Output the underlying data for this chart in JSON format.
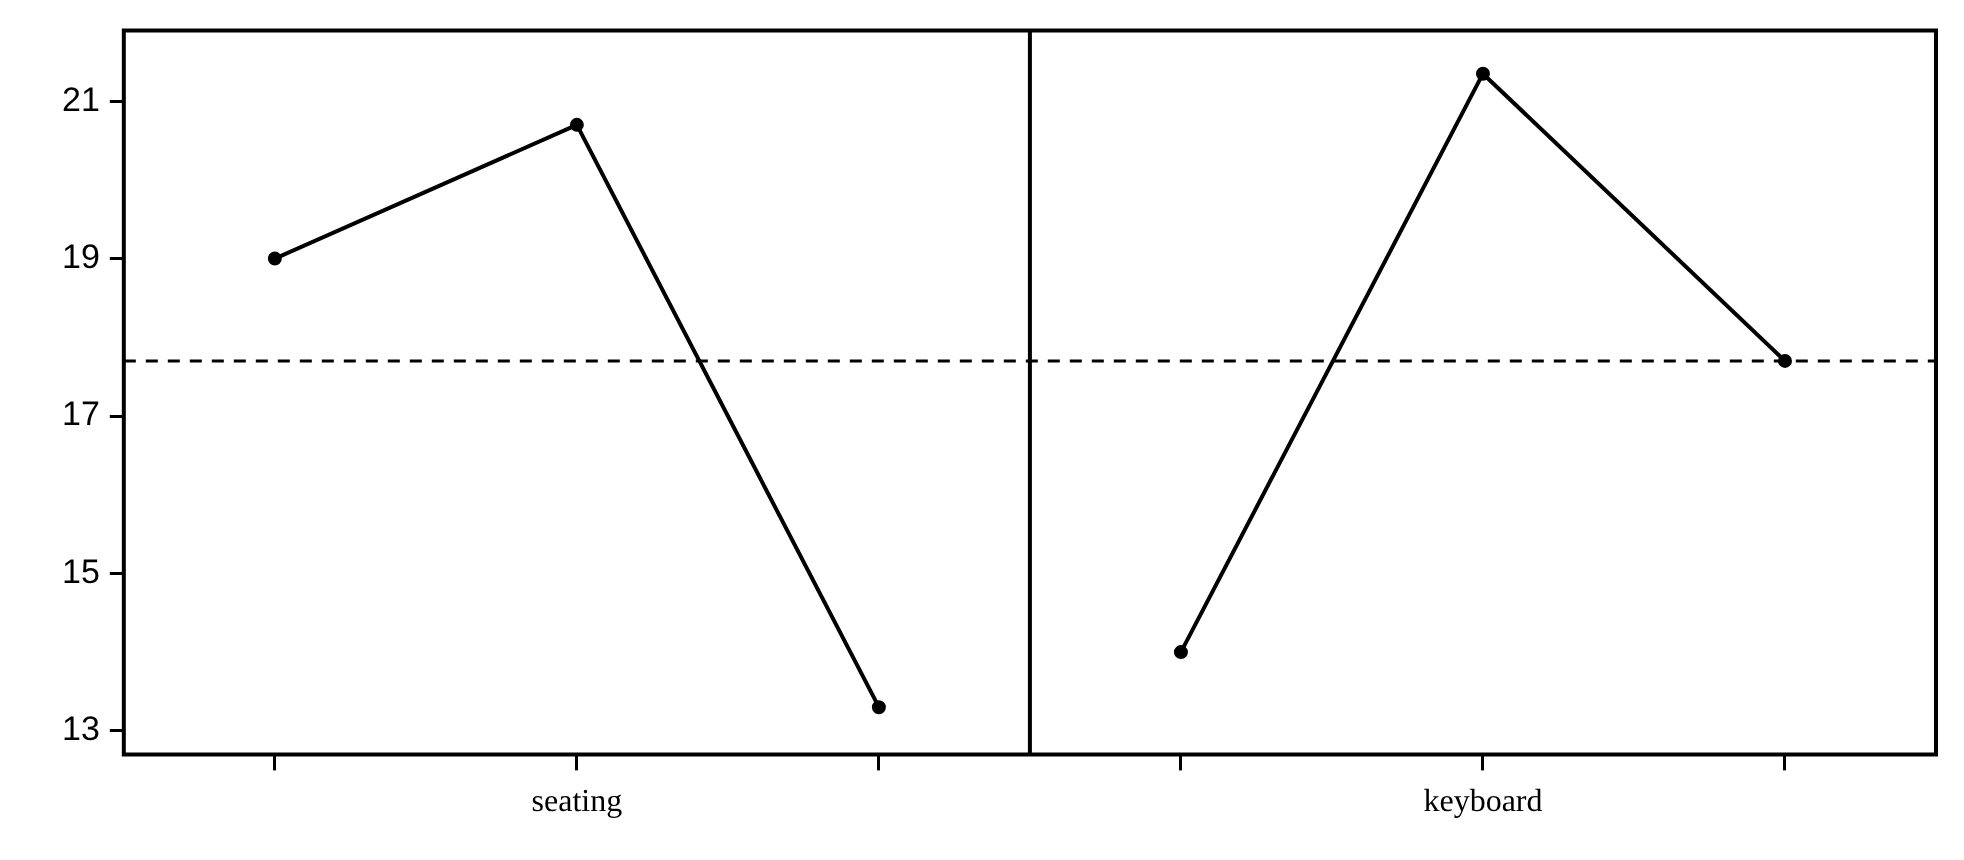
{
  "chart_data": {
    "type": "line",
    "categories": [
      null,
      null,
      null,
      null,
      null,
      null
    ],
    "series": [
      {
        "color": "#000000",
        "values": [
          19.0,
          20.7,
          13.3,
          null,
          null,
          null
        ]
      },
      {
        "color": "#000000",
        "values": [
          null,
          null,
          null,
          14.0,
          21.35,
          17.7
        ]
      }
    ],
    "annotations": [
      "seating",
      "keyboard"
    ],
    "ylim": [
      12.7,
      21.9
    ],
    "yticks": [
      13,
      15,
      17,
      19,
      21
    ],
    "ref_lines": [
      {
        "axis": "y",
        "value": 17.7,
        "line_style": "dashed"
      }
    ],
    "marker": "circle",
    "grid": false,
    "legend": false
  }
}
